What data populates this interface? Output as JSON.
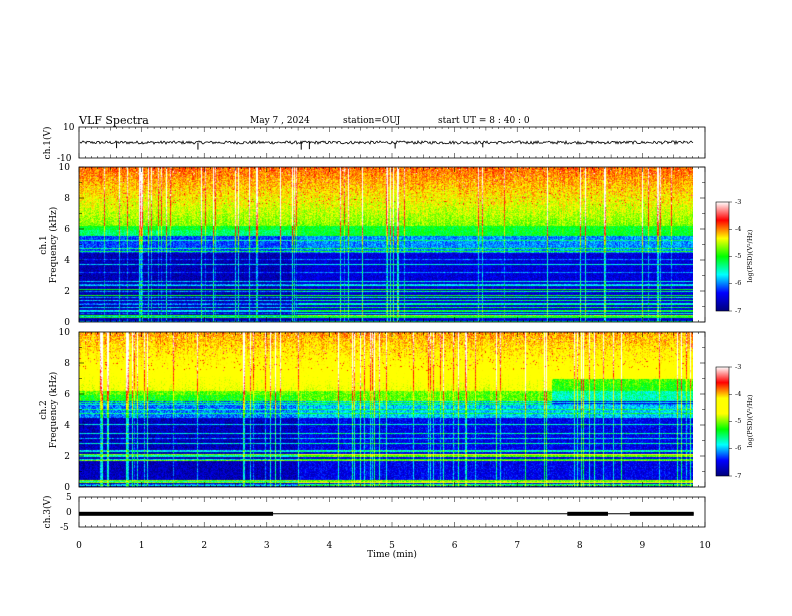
{
  "header": {
    "title": "VLF Spectra",
    "date": "May 7 , 2024",
    "station": "station=OUJ",
    "start_ut": "start UT = 8 : 40 : 0"
  },
  "chart_data": [
    {
      "type": "line",
      "name": "ch1-waveform",
      "ylabel": "ch.1(V)",
      "ylim": [
        -10,
        10
      ],
      "yticks": [
        "10",
        "-10"
      ],
      "xlim": [
        0,
        10
      ],
      "baseline": 0,
      "noise_amplitude": 1
    },
    {
      "type": "heatmap",
      "name": "ch1-spectrogram",
      "ylabel_top": "ch.1",
      "ylabel": "Frequency (kHz)",
      "ylim": [
        0,
        10
      ],
      "yticks": [
        "0",
        "2",
        "4",
        "6",
        "8",
        "10"
      ],
      "xlim": [
        0,
        10
      ],
      "data_end_min": 9.82,
      "level_change_min": 3.5,
      "colorbar": {
        "label": "log(PSD)(V²/Hz)",
        "range": [
          -7,
          -3
        ],
        "ticks": [
          "-3",
          "-4",
          "-5",
          "-6",
          "-7"
        ],
        "colors": [
          "#00007a",
          "#0000ff",
          "#00ffff",
          "#00ff00",
          "#ffff00",
          "#ff0000",
          "#ffffff"
        ]
      }
    },
    {
      "type": "heatmap",
      "name": "ch2-spectrogram",
      "ylabel_top": "ch.2",
      "ylabel": "Frequency (kHz)",
      "ylim": [
        0,
        10
      ],
      "yticks": [
        "0",
        "2",
        "4",
        "6",
        "8",
        "10"
      ],
      "xlim": [
        0,
        10
      ],
      "data_end_min": 9.82,
      "level_change_min": 3.5,
      "colorbar": {
        "label": "log(PSD)(V²/Hz)",
        "range": [
          -7,
          -3
        ],
        "ticks": [
          "-3",
          "-4",
          "-5",
          "-6",
          "-7"
        ],
        "colors": [
          "#00007a",
          "#0000ff",
          "#00ffff",
          "#00ff00",
          "#ffff00",
          "#ffff00",
          "#ff0000",
          "#ffffff"
        ]
      }
    },
    {
      "type": "line",
      "name": "ch3-signal",
      "ylabel": "ch.3(V)",
      "ylim": [
        -5,
        5
      ],
      "yticks": [
        "5",
        "0",
        "-5"
      ],
      "xlim": [
        0,
        10
      ],
      "xlabel": "Time (min)",
      "xticks": [
        "0",
        "1",
        "2",
        "3",
        "4",
        "5",
        "6",
        "7",
        "8",
        "9",
        "10"
      ],
      "base_level": -0.6,
      "bars": [
        {
          "start": 0.0,
          "end": 3.1,
          "level": -0.6
        },
        {
          "start": 7.8,
          "end": 8.45,
          "level": -0.6
        },
        {
          "start": 8.8,
          "end": 9.82,
          "level": -0.6
        }
      ]
    }
  ]
}
